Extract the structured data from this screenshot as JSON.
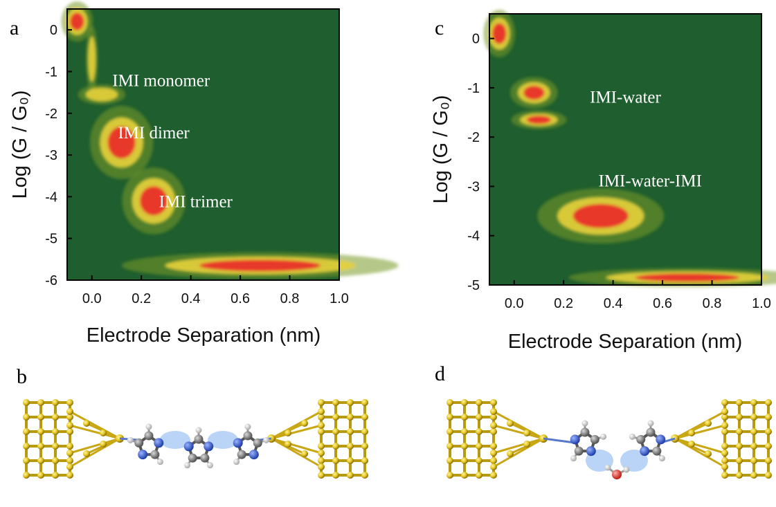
{
  "panels": {
    "a": "a",
    "b": "b",
    "c": "c",
    "d": "d"
  },
  "chart_data": [
    {
      "type": "heatmap",
      "panel": "a",
      "xlabel": "Electrode Separation (nm)",
      "ylabel": "Log (G / G₀)",
      "xlim": [
        -0.1,
        1.0
      ],
      "ylim": [
        -6,
        0.5
      ],
      "xticks": [
        "0.0",
        "0.2",
        "0.4",
        "0.6",
        "0.8",
        "1.0"
      ],
      "yticks": [
        "0",
        "-1",
        "-2",
        "-3",
        "-4",
        "-5",
        "-6"
      ],
      "colors": {
        "background": "#1f5e2e",
        "low": "#7a9a2a",
        "mid": "#e8d23a",
        "high": "#e8392a"
      },
      "annotations": [
        {
          "text": "IMI monomer",
          "x": 0.28,
          "y": -1.35
        },
        {
          "text": "IMI dimer",
          "x": 0.25,
          "y": -2.6
        },
        {
          "text": "IMI trimer",
          "x": 0.42,
          "y": -4.25
        }
      ],
      "clusters": [
        {
          "x": -0.06,
          "y": 0.2,
          "sx": 0.04,
          "sy": 0.3,
          "intensity": 1.0
        },
        {
          "x": 0.0,
          "y": -0.7,
          "sx": 0.015,
          "sy": 0.5,
          "intensity": 0.6
        },
        {
          "x": 0.04,
          "y": -1.55,
          "sx": 0.06,
          "sy": 0.15,
          "intensity": 0.55
        },
        {
          "x": 0.12,
          "y": -2.7,
          "sx": 0.08,
          "sy": 0.55,
          "intensity": 1.0
        },
        {
          "x": 0.25,
          "y": -4.1,
          "sx": 0.08,
          "sy": 0.5,
          "intensity": 1.0
        },
        {
          "x": 0.68,
          "y": -5.65,
          "sx": 0.35,
          "sy": 0.2,
          "intensity": 1.0
        }
      ]
    },
    {
      "type": "heatmap",
      "panel": "c",
      "xlabel": "Electrode Separation (nm)",
      "ylabel": "Log (G / G₀)",
      "xlim": [
        -0.1,
        1.0
      ],
      "ylim": [
        -5,
        0.5
      ],
      "xticks": [
        "0.0",
        "0.2",
        "0.4",
        "0.6",
        "0.8",
        "1.0"
      ],
      "yticks": [
        "0",
        "-1",
        "-2",
        "-3",
        "-4",
        "-5"
      ],
      "colors": {
        "background": "#1f5e2e",
        "low": "#7a9a2a",
        "mid": "#e8d23a",
        "high": "#e8392a"
      },
      "annotations": [
        {
          "text": "IMI-water",
          "x": 0.45,
          "y": -1.3
        },
        {
          "text": "IMI-water-IMI",
          "x": 0.55,
          "y": -3.0
        }
      ],
      "clusters": [
        {
          "x": -0.06,
          "y": 0.1,
          "sx": 0.04,
          "sy": 0.3,
          "intensity": 1.0
        },
        {
          "x": 0.08,
          "y": -1.1,
          "sx": 0.06,
          "sy": 0.2,
          "intensity": 1.0
        },
        {
          "x": 0.1,
          "y": -1.65,
          "sx": 0.07,
          "sy": 0.12,
          "intensity": 0.9
        },
        {
          "x": 0.35,
          "y": -3.6,
          "sx": 0.16,
          "sy": 0.35,
          "intensity": 1.0
        },
        {
          "x": 0.7,
          "y": -4.85,
          "sx": 0.3,
          "sy": 0.12,
          "intensity": 0.9
        }
      ]
    }
  ],
  "molecules": {
    "b": {
      "name": "IMI trimer junction"
    },
    "d": {
      "name": "IMI-water-IMI junction"
    }
  }
}
